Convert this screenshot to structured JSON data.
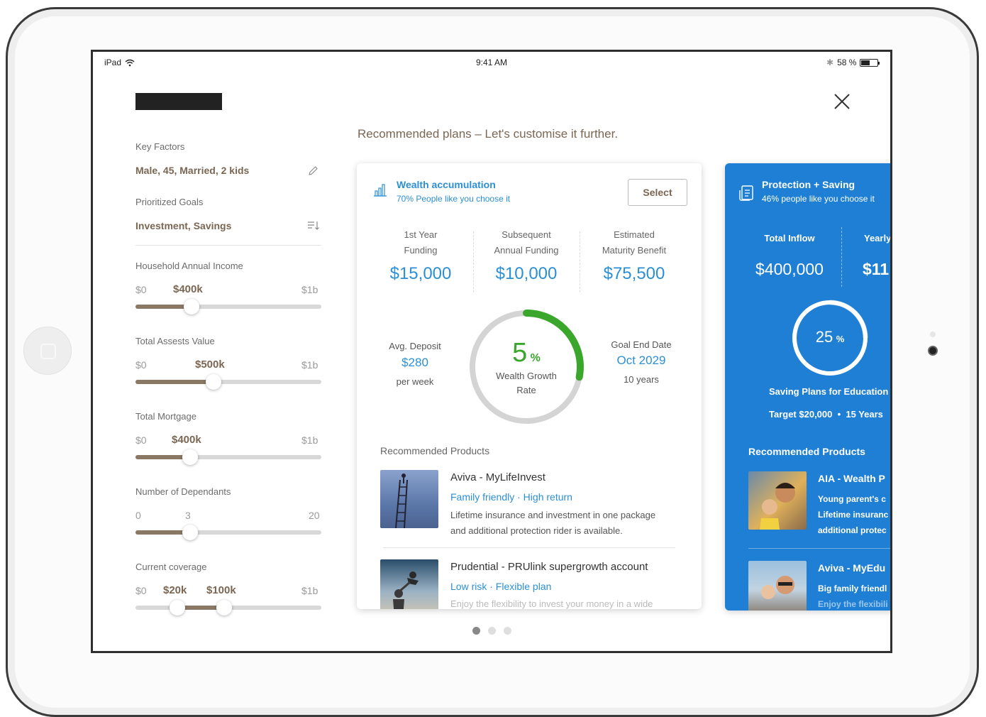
{
  "status_bar": {
    "device": "iPad",
    "time": "9:41 AM",
    "battery": "58 %"
  },
  "left_panel": {
    "key_factors": {
      "label": "Key Factors",
      "value": "Male, 45, Married, 2 kids"
    },
    "goals": {
      "label": "Prioritized Goals",
      "value": "Investment, Savings"
    },
    "sliders": [
      {
        "label": "Household Annual Income",
        "min": "$0",
        "value": "$400k",
        "max": "$1b",
        "fill": 0.3
      },
      {
        "label": "Total Assests Value",
        "min": "$0",
        "value": "$500k",
        "max": "$1b",
        "fill": 0.42
      },
      {
        "label": "Total Mortgage",
        "min": "$0",
        "value": "$400k",
        "max": "$1b",
        "fill": 0.29
      },
      {
        "label": "Number of Dependants",
        "min": "0",
        "value": "3",
        "max": "20",
        "fill": 0.29
      },
      {
        "label": "Current coverage",
        "min": "$0",
        "value_low": "$20k",
        "value_high": "$100k",
        "max": "$1b",
        "fill_low": 0.22,
        "fill_high": 0.48
      }
    ]
  },
  "main": {
    "heading": "Recommended plans – Let's customise it further.",
    "pager": {
      "count": 3,
      "active": 1
    }
  },
  "plan_card": {
    "title": "Wealth accumulation",
    "subtitle": "70% People like you choose it",
    "select_label": "Select",
    "metrics": [
      {
        "label_line1": "1st Year",
        "label_line2": "Funding",
        "value": "$15,000"
      },
      {
        "label_line1": "Subsequent",
        "label_line2": "Annual Funding",
        "value": "$10,000"
      },
      {
        "label_line1": "Estimated",
        "label_line2": "Maturity Benefit",
        "value": "$75,500"
      }
    ],
    "deposit": {
      "label": "Avg. Deposit",
      "value": "$280",
      "unit": "per week"
    },
    "growth": {
      "value": "5",
      "unit": "%",
      "label_line1": "Wealth Growth",
      "label_line2": "Rate",
      "progress": 0.28
    },
    "goal_end": {
      "label": "Goal End Date",
      "value": "Oct 2029",
      "duration": "10 years"
    },
    "products_heading": "Recommended Products",
    "products": [
      {
        "name": "Aviva - MyLifeInvest",
        "tags": "Family friendly · High return",
        "desc_line1": "Lifetime insurance and investment in one package",
        "desc_line2": "and additional protection rider is available."
      },
      {
        "name": "Prudential - PRUlink supergrowth account",
        "tags": "Low risk · Flexible plan",
        "desc_line1": "Enjoy the flexibility to invest your money in a wide"
      }
    ]
  },
  "side_card": {
    "title": "Protection + Saving",
    "subtitle": "46% people like you choose it",
    "metrics": [
      {
        "label": "Total Inflow",
        "value": "$400,000"
      },
      {
        "label": "Yearly",
        "value": "$11"
      }
    ],
    "ring": {
      "value": "25",
      "unit": "%",
      "progress": 0.25
    },
    "plan_label": "Saving Plans for Education",
    "target": "Target $20,000  •  15 Years",
    "products_heading": "Recommended Products",
    "products": [
      {
        "name": "AIA - Wealth P",
        "line1": "Young parent's c",
        "line2": "Lifetime insuranc",
        "line3": "additional protec"
      },
      {
        "name": "Aviva - MyEdu",
        "line1": "Big family friendl",
        "line2": "Enjoy the flexibili"
      }
    ]
  },
  "colors": {
    "accent_blue": "#2c8fd6",
    "card_blue": "#1e7fd4",
    "brown": "#7b6652",
    "green": "#3aa62c"
  }
}
